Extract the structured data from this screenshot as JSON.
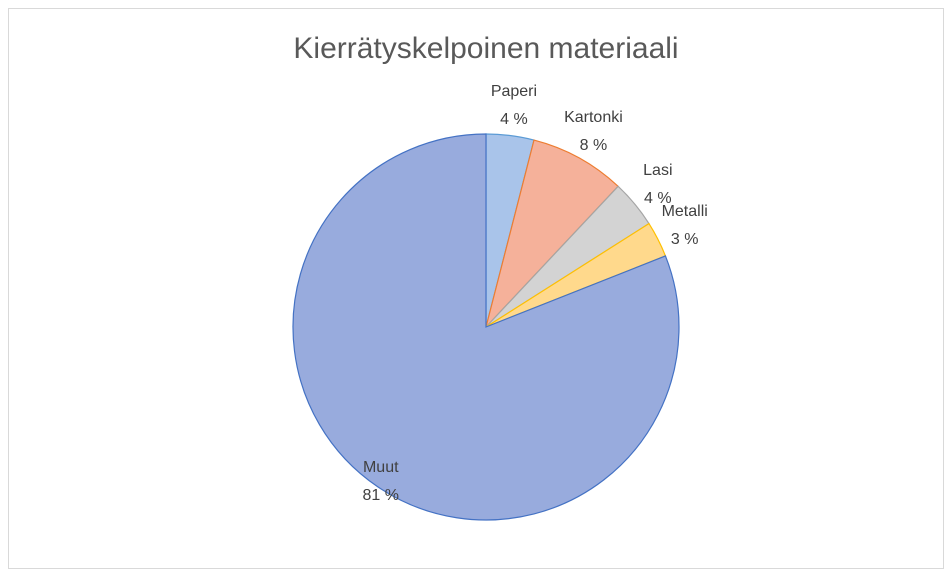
{
  "chart_data": {
    "type": "pie",
    "title": "Kierrätyskelpoinen materiaali",
    "categories": [
      "Paperi",
      "Kartonki",
      "Lasi",
      "Metalli",
      "Muut"
    ],
    "values": [
      4,
      8,
      4,
      3,
      81
    ],
    "value_labels": [
      "4 %",
      "8 %",
      "4 %",
      "3 %",
      "81 %"
    ],
    "colors": [
      "#a9c4ea",
      "#f5b19a",
      "#d3d3d3",
      "#ffd98c",
      "#98abdd"
    ],
    "stroke_colors": [
      "#5b9bd5",
      "#ed7d31",
      "#a5a5a5",
      "#ffc000",
      "#4472c4"
    ]
  }
}
